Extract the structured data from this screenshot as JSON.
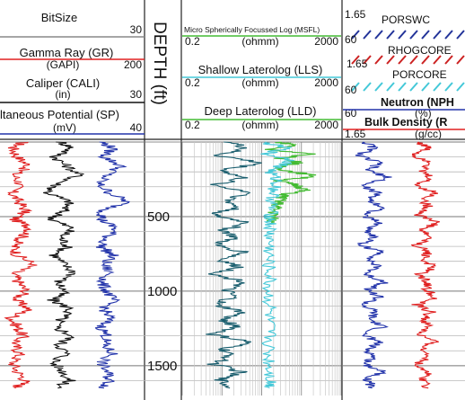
{
  "chart_data": {
    "type": "line",
    "depth_axis": {
      "title": "DEPTH (ft)",
      "ticks": [
        "500",
        "1000",
        "1500"
      ],
      "range": [
        0,
        1700
      ]
    },
    "tracks": [
      {
        "name": "track-1",
        "curves": [
          {
            "name": "BitSize",
            "min": "",
            "max": "30",
            "unit": "",
            "color": "#888888"
          },
          {
            "name": "Gamma Ray (GR)",
            "min": "(GAPI)",
            "max": "200",
            "unit": "",
            "color": "#e02020"
          },
          {
            "name": "Caliper (CALI)",
            "min": "(in)",
            "max": "30",
            "unit": "",
            "color": "#111111"
          },
          {
            "name": "ltaneous Potential (SP)",
            "min": "(mV)",
            "max": "40",
            "unit": "",
            "color": "#2233aa"
          }
        ]
      },
      {
        "name": "track-2",
        "scale": "log",
        "curves": [
          {
            "name": "Micro Spherically Focussed Log (MSFL)",
            "min": "0.2",
            "unit": "(ohmm)",
            "max": "2000",
            "color": "#44bb33"
          },
          {
            "name": "Shallow Laterolog (LLS)",
            "min": "0.2",
            "unit": "(ohmm)",
            "max": "2000",
            "color": "#44c8d8"
          },
          {
            "name": "Deep Laterolog (LLD)",
            "min": "0.2",
            "unit": "(ohmm)",
            "max": "2000",
            "color": "#1a5e6e"
          }
        ]
      },
      {
        "name": "track-3",
        "curves": [
          {
            "name": "PORSWC",
            "min": "60",
            "max": "",
            "unit": "",
            "color": "#223399"
          },
          {
            "name": "RHOGCORE",
            "min": "1.65",
            "max": "",
            "unit": "",
            "color": "#cc2222"
          },
          {
            "name": "PORCORE",
            "min": "60",
            "max": "",
            "unit": "",
            "color": "#44c8d8"
          },
          {
            "name": "Neutron (NPH",
            "min": "60",
            "max": "",
            "unit": "(%)",
            "color": "#2233aa"
          },
          {
            "name": "Bulk Density (R",
            "min": "1.65",
            "max": "",
            "unit": "(g/cc)",
            "color": "#e02020"
          }
        ],
        "top_value": "1.65"
      }
    ],
    "series": [
      {
        "name": "Gamma Ray (GR)",
        "track": 0,
        "color": "#e02020",
        "range": [
          0.03,
          0.34
        ],
        "depth": [
          0,
          40,
          100,
          160,
          220,
          280,
          340,
          400,
          460,
          520,
          580,
          640,
          700,
          760,
          820,
          880,
          940,
          1000,
          1060,
          1120,
          1180,
          1240,
          1300,
          1360,
          1420,
          1480,
          1540,
          1600,
          1650
        ],
        "value": [
          0.16,
          0.09,
          0.12,
          0.2,
          0.1,
          0.14,
          0.08,
          0.13,
          0.18,
          0.1,
          0.22,
          0.15,
          0.1,
          0.12,
          0.24,
          0.09,
          0.13,
          0.18,
          0.11,
          0.2,
          0.08,
          0.12,
          0.16,
          0.1,
          0.14,
          0.09,
          0.12,
          0.18,
          0.11
        ]
      },
      {
        "name": "Caliper (CALI)",
        "track": 0,
        "color": "#111111",
        "range": [
          0.25,
          0.65
        ],
        "depth": [
          0,
          40,
          100,
          160,
          220,
          280,
          340,
          400,
          460,
          520,
          580,
          640,
          700,
          760,
          820,
          880,
          940,
          1000,
          1060,
          1120,
          1180,
          1240,
          1300,
          1360,
          1420,
          1480,
          1540,
          1600,
          1650
        ],
        "value": [
          0.42,
          0.5,
          0.38,
          0.46,
          0.55,
          0.4,
          0.33,
          0.48,
          0.44,
          0.36,
          0.5,
          0.42,
          0.47,
          0.38,
          0.44,
          0.52,
          0.4,
          0.45,
          0.36,
          0.49,
          0.43,
          0.38,
          0.5,
          0.41,
          0.46,
          0.37,
          0.44,
          0.48,
          0.4
        ]
      },
      {
        "name": "ltaneous Potential (SP)",
        "track": 0,
        "color": "#2233aa",
        "range": [
          0.55,
          1.0
        ],
        "depth": [
          0,
          40,
          100,
          160,
          220,
          280,
          340,
          400,
          460,
          520,
          580,
          640,
          700,
          760,
          820,
          880,
          940,
          1000,
          1060,
          1120,
          1180,
          1240,
          1300,
          1360,
          1420,
          1480,
          1540,
          1600,
          1650
        ],
        "value": [
          0.7,
          0.78,
          0.72,
          0.84,
          0.74,
          0.68,
          0.76,
          0.88,
          0.72,
          0.7,
          0.8,
          0.74,
          0.7,
          0.78,
          0.72,
          0.76,
          0.7,
          0.74,
          0.78,
          0.72,
          0.76,
          0.7,
          0.74,
          0.72,
          0.78,
          0.7,
          0.74,
          0.76,
          0.72
        ]
      },
      {
        "name": "Micro Spherically Focussed Log (MSFL)",
        "track": 1,
        "color": "#44bb33",
        "range": [
          0.3,
          0.9
        ],
        "depth": [
          0,
          20,
          50,
          80,
          110,
          140,
          170,
          200,
          230,
          260,
          290,
          320,
          350,
          380,
          420,
          460,
          500,
          540
        ],
        "value": [
          0.6,
          0.72,
          0.55,
          0.8,
          0.62,
          0.75,
          0.58,
          0.7,
          0.85,
          0.6,
          0.72,
          0.78,
          0.65,
          0.62,
          0.6,
          0.58,
          0.57,
          0.56
        ]
      },
      {
        "name": "Shallow Laterolog (LLS)",
        "track": 1,
        "color": "#44c8d8",
        "range": [
          0.3,
          0.85
        ],
        "depth": [
          0,
          40,
          80,
          120,
          160,
          200,
          260,
          320,
          380,
          440,
          500,
          560,
          620,
          700,
          800,
          900,
          1000,
          1100,
          1200,
          1300,
          1400,
          1500,
          1600,
          1650
        ],
        "value": [
          0.5,
          0.66,
          0.52,
          0.7,
          0.62,
          0.55,
          0.6,
          0.58,
          0.57,
          0.56,
          0.56,
          0.55,
          0.55,
          0.55,
          0.54,
          0.55,
          0.54,
          0.55,
          0.54,
          0.55,
          0.54,
          0.55,
          0.56,
          0.55
        ]
      },
      {
        "name": "Deep Laterolog (LLD)",
        "track": 1,
        "color": "#1a5e6e",
        "range": [
          0.0,
          0.6
        ],
        "depth": [
          0,
          40,
          90,
          140,
          190,
          240,
          290,
          340,
          390,
          440,
          490,
          540,
          590,
          640,
          690,
          740,
          790,
          840,
          890,
          940,
          990,
          1040,
          1090,
          1140,
          1190,
          1240,
          1290,
          1340,
          1390,
          1440,
          1490,
          1540,
          1590,
          1650
        ],
        "value": [
          0.3,
          0.4,
          0.22,
          0.5,
          0.25,
          0.38,
          0.2,
          0.44,
          0.28,
          0.35,
          0.18,
          0.42,
          0.26,
          0.33,
          0.2,
          0.4,
          0.24,
          0.36,
          0.19,
          0.41,
          0.27,
          0.32,
          0.2,
          0.38,
          0.25,
          0.35,
          0.18,
          0.42,
          0.26,
          0.3,
          0.2,
          0.37,
          0.24,
          0.3
        ]
      },
      {
        "name": "Neutron (NPH",
        "track": 2,
        "color": "#2233aa",
        "range": [
          0.0,
          0.5
        ],
        "depth": [
          0,
          40,
          90,
          140,
          190,
          240,
          290,
          340,
          390,
          440,
          490,
          540,
          590,
          640,
          690,
          740,
          790,
          840,
          890,
          940,
          990,
          1040,
          1090,
          1140,
          1190,
          1240,
          1290,
          1340,
          1390,
          1440,
          1490,
          1540,
          1590,
          1650
        ],
        "value": [
          0.18,
          0.26,
          0.12,
          0.3,
          0.2,
          0.38,
          0.15,
          0.28,
          0.22,
          0.34,
          0.16,
          0.3,
          0.2,
          0.26,
          0.14,
          0.32,
          0.22,
          0.28,
          0.18,
          0.36,
          0.2,
          0.3,
          0.16,
          0.26,
          0.22,
          0.32,
          0.15,
          0.3,
          0.2,
          0.25,
          0.18,
          0.34,
          0.2,
          0.24
        ]
      },
      {
        "name": "Bulk Density (R",
        "track": 2,
        "color": "#e02020",
        "range": [
          0.45,
          1.0
        ],
        "depth": [
          0,
          40,
          90,
          140,
          190,
          240,
          290,
          340,
          390,
          440,
          490,
          540,
          590,
          640,
          690,
          740,
          790,
          840,
          890,
          940,
          990,
          1040,
          1090,
          1140,
          1190,
          1240,
          1290,
          1340,
          1390,
          1440,
          1490,
          1540,
          1590,
          1650
        ],
        "value": [
          0.62,
          0.7,
          0.58,
          0.74,
          0.64,
          0.72,
          0.6,
          0.76,
          0.66,
          0.7,
          0.62,
          0.78,
          0.64,
          0.72,
          0.6,
          0.7,
          0.66,
          0.74,
          0.62,
          0.7,
          0.68,
          0.76,
          0.6,
          0.72,
          0.66,
          0.7,
          0.62,
          0.74,
          0.64,
          0.72,
          0.6,
          0.7,
          0.66,
          0.7
        ]
      }
    ]
  }
}
